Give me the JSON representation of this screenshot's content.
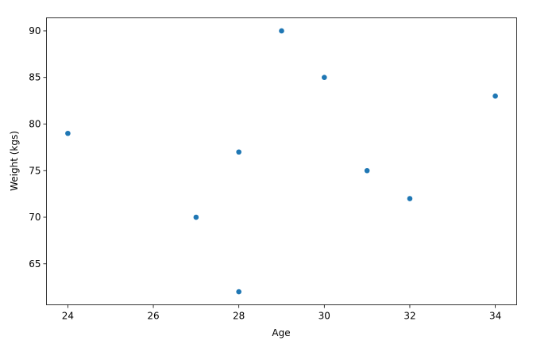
{
  "chart_data": {
    "type": "scatter",
    "title": "",
    "xlabel": "Age",
    "ylabel": "Weight (kgs)",
    "xlim": [
      23.5,
      34.5
    ],
    "ylim": [
      60.6,
      91.4
    ],
    "xticks": [
      24,
      26,
      28,
      30,
      32,
      34
    ],
    "yticks": [
      65,
      70,
      75,
      80,
      85,
      90
    ],
    "grid": false,
    "color": "#1f77b4",
    "points": [
      {
        "x": 24,
        "y": 79
      },
      {
        "x": 27,
        "y": 70
      },
      {
        "x": 28,
        "y": 77
      },
      {
        "x": 28,
        "y": 62
      },
      {
        "x": 29,
        "y": 90
      },
      {
        "x": 30,
        "y": 85
      },
      {
        "x": 31,
        "y": 75
      },
      {
        "x": 32,
        "y": 72
      },
      {
        "x": 34,
        "y": 83
      }
    ]
  }
}
